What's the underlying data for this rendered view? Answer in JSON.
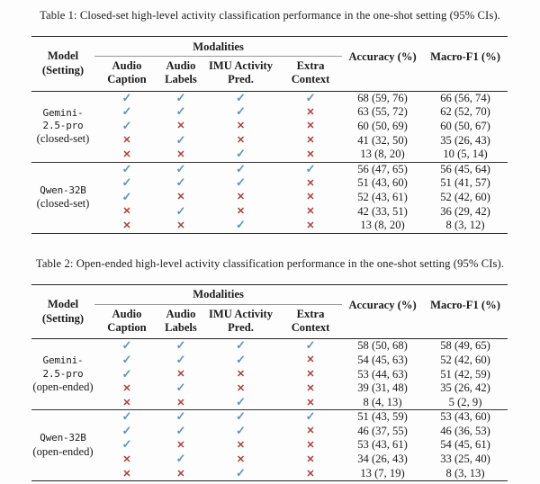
{
  "page": {
    "background": "#fdfdfd"
  },
  "colors": {
    "check": "#6193bf",
    "cross": "#a8403a",
    "text": "#1b1b1b",
    "rule": "#262626"
  },
  "glyphs": {
    "check": "✓",
    "cross": "✕"
  },
  "header": {
    "model_line1": "Model",
    "model_line2": "(Setting)",
    "modalities": "Modalities",
    "subcolumns": [
      {
        "line1": "Audio",
        "line2": "Caption"
      },
      {
        "line1": "Audio",
        "line2": "Labels"
      },
      {
        "line1": "IMU Activity",
        "line2": "Pred."
      },
      {
        "line1": "Extra",
        "line2": "Context"
      }
    ],
    "accuracy": "Accuracy (%)",
    "macro_f1": "Macro-F1 (%)"
  },
  "tables": [
    {
      "caption": "Table 1: Closed-set high-level activity classification performance in the one-shot setting (95% CIs).",
      "groups": [
        {
          "model_lines": [
            "Gemini-",
            "2.5-pro"
          ],
          "setting": "(closed-set)",
          "rows": [
            {
              "modalities": [
                true,
                true,
                true,
                true
              ],
              "accuracy": "68 (59, 76)",
              "macro_f1": "66 (56, 74)"
            },
            {
              "modalities": [
                true,
                true,
                true,
                false
              ],
              "accuracy": "63 (55, 72)",
              "macro_f1": "62 (52, 70)"
            },
            {
              "modalities": [
                true,
                false,
                false,
                false
              ],
              "accuracy": "60 (50, 69)",
              "macro_f1": "60 (50, 67)"
            },
            {
              "modalities": [
                false,
                true,
                false,
                false
              ],
              "accuracy": "41 (32, 50)",
              "macro_f1": "35 (26, 43)"
            },
            {
              "modalities": [
                false,
                false,
                true,
                false
              ],
              "accuracy": "13 (8, 20)",
              "macro_f1": "10 (5, 14)"
            }
          ]
        },
        {
          "model_lines": [
            "Qwen-32B"
          ],
          "setting": "(closed-set)",
          "rows": [
            {
              "modalities": [
                true,
                true,
                true,
                true
              ],
              "accuracy": "56 (47, 65)",
              "macro_f1": "56 (45, 64)"
            },
            {
              "modalities": [
                true,
                true,
                true,
                false
              ],
              "accuracy": "51 (43, 60)",
              "macro_f1": "51 (41, 57)"
            },
            {
              "modalities": [
                true,
                false,
                false,
                false
              ],
              "accuracy": "52 (43, 61)",
              "macro_f1": "52 (42, 60)"
            },
            {
              "modalities": [
                false,
                true,
                false,
                false
              ],
              "accuracy": "42 (33, 51)",
              "macro_f1": "36 (29, 42)"
            },
            {
              "modalities": [
                false,
                false,
                true,
                false
              ],
              "accuracy": "13 (8, 20)",
              "macro_f1": "8 (3, 12)"
            }
          ]
        }
      ]
    },
    {
      "caption": "Table 2: Open-ended high-level activity classification performance in the one-shot setting (95% CIs).",
      "groups": [
        {
          "model_lines": [
            "Gemini-",
            "2.5-pro"
          ],
          "setting": "(open-ended)",
          "rows": [
            {
              "modalities": [
                true,
                true,
                true,
                true
              ],
              "accuracy": "58 (50, 68)",
              "macro_f1": "58 (49, 65)"
            },
            {
              "modalities": [
                true,
                true,
                true,
                false
              ],
              "accuracy": "54 (45, 63)",
              "macro_f1": "52 (42, 60)"
            },
            {
              "modalities": [
                true,
                false,
                false,
                false
              ],
              "accuracy": "53 (44, 63)",
              "macro_f1": "51 (42, 59)"
            },
            {
              "modalities": [
                false,
                true,
                false,
                false
              ],
              "accuracy": "39 (31, 48)",
              "macro_f1": "35 (26, 42)"
            },
            {
              "modalities": [
                false,
                false,
                true,
                false
              ],
              "accuracy": "8 (4, 13)",
              "macro_f1": "5 (2, 9)"
            }
          ]
        },
        {
          "model_lines": [
            "Qwen-32B"
          ],
          "setting": "(open-ended)",
          "rows": [
            {
              "modalities": [
                true,
                true,
                true,
                true
              ],
              "accuracy": "51 (43, 59)",
              "macro_f1": "53 (43, 60)"
            },
            {
              "modalities": [
                true,
                true,
                true,
                false
              ],
              "accuracy": "46 (37, 55)",
              "macro_f1": "46 (36, 53)"
            },
            {
              "modalities": [
                true,
                false,
                false,
                false
              ],
              "accuracy": "53 (43, 61)",
              "macro_f1": "54 (45, 61)"
            },
            {
              "modalities": [
                false,
                true,
                false,
                false
              ],
              "accuracy": "34 (26, 43)",
              "macro_f1": "33 (25, 40)"
            },
            {
              "modalities": [
                false,
                false,
                true,
                false
              ],
              "accuracy": "13 (7, 19)",
              "macro_f1": "8 (3, 13)"
            }
          ]
        }
      ]
    }
  ]
}
